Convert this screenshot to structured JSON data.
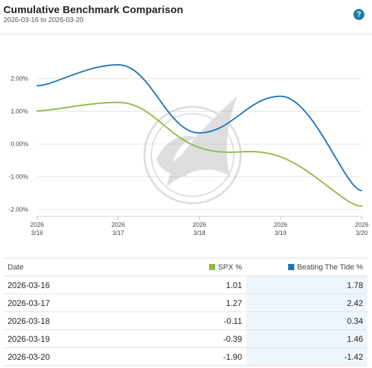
{
  "header": {
    "title": "Cumulative Benchmark Comparison",
    "subtitle": "2026-03-16 to 2026-03-20",
    "help_label": "?"
  },
  "colors": {
    "spx": "#8dbb41",
    "btt": "#1b75b8",
    "grid": "#e6e6e6",
    "help": "#1a7fa6"
  },
  "chart_data": {
    "type": "line",
    "categories": [
      "2026-03-16",
      "2026-03-17",
      "2026-03-18",
      "2026-03-19",
      "2026-03-20"
    ],
    "x_tick_labels": [
      {
        "year": "2026",
        "date": "3/16"
      },
      {
        "year": "2026",
        "date": "3/17"
      },
      {
        "year": "2026",
        "date": "3/18"
      },
      {
        "year": "2026",
        "date": "3/19"
      },
      {
        "year": "2026",
        "date": "3/20"
      }
    ],
    "y_ticks": [
      2,
      1,
      0,
      -1,
      -2
    ],
    "y_tick_labels": [
      "2.00%",
      "1.00%",
      "0.00%",
      "-1.00%",
      "-2.00%"
    ],
    "ylim": [
      -2.3,
      2.6
    ],
    "grid": true,
    "series": [
      {
        "name": "SPX %",
        "color": "#8dbb41",
        "values": [
          1.01,
          1.27,
          -0.11,
          -0.39,
          -1.9
        ]
      },
      {
        "name": "Beating The Tide %",
        "color": "#1b75b8",
        "values": [
          1.78,
          2.42,
          0.34,
          1.46,
          -1.42
        ]
      }
    ],
    "watermark": "shark-fin-logo"
  },
  "table": {
    "headers": {
      "date": "Date",
      "spx": "SPX %",
      "btt": "Beating The Tide %"
    },
    "rows": [
      {
        "date": "2026-03-16",
        "spx": "1.01",
        "btt": "1.78"
      },
      {
        "date": "2026-03-17",
        "spx": "1.27",
        "btt": "2.42"
      },
      {
        "date": "2026-03-18",
        "spx": "-0.11",
        "btt": "0.34"
      },
      {
        "date": "2026-03-19",
        "spx": "-0.39",
        "btt": "1.46"
      },
      {
        "date": "2026-03-20",
        "spx": "-1.90",
        "btt": "-1.42"
      }
    ]
  }
}
